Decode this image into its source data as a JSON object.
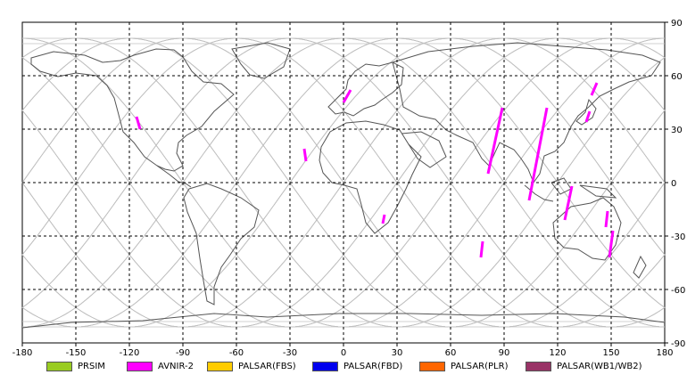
{
  "map": {
    "lon_range": [
      -180,
      180
    ],
    "lat_range": [
      -90,
      90
    ],
    "x_ticks": [
      "-180",
      "-150",
      "-120",
      "-90",
      "-60",
      "-30",
      "0",
      "30",
      "60",
      "90",
      "120",
      "150",
      "180"
    ],
    "y_ticks": [
      "90",
      "60",
      "30",
      "0",
      "-30",
      "-60",
      "-90"
    ],
    "grid": "dashed",
    "colors": {
      "background": "#ffffff",
      "coast": "#555555",
      "orbit": "#c0c0c0",
      "grid": "#000000"
    }
  },
  "legend": [
    {
      "label": "PRSIM",
      "color": "#99cc22"
    },
    {
      "label": "AVNIR-2",
      "color": "#ff00ff"
    },
    {
      "label": "PALSAR(FBS)",
      "color": "#ffcc00"
    },
    {
      "label": "PALSAR(FBD)",
      "color": "#0000ee"
    },
    {
      "label": "PALSAR(PLR)",
      "color": "#ff6600"
    },
    {
      "label": "PALSAR(WB1/WB2)",
      "color": "#993366"
    }
  ],
  "chart_data": {
    "type": "scatter",
    "xlim": [
      -180,
      180
    ],
    "ylim": [
      -90,
      90
    ],
    "series": [
      {
        "name": "AVNIR-2",
        "color": "#ff00ff",
        "segments": [
          [
            [
              -116,
              37
            ],
            [
              -114,
              30
            ]
          ],
          [
            [
              -22,
              19
            ],
            [
              -21,
              12
            ]
          ],
          [
            [
              0,
              45
            ],
            [
              4,
              52
            ]
          ],
          [
            [
              23,
              -18
            ],
            [
              22,
              -23
            ]
          ],
          [
            [
              78,
              -33
            ],
            [
              77,
              -42
            ]
          ],
          [
            [
              89,
              42
            ],
            [
              81,
              5
            ]
          ],
          [
            [
              114,
              42
            ],
            [
              104,
              -10
            ]
          ],
          [
            [
              128,
              -2
            ],
            [
              124,
              -21
            ]
          ],
          [
            [
              142,
              56
            ],
            [
              139,
              49
            ]
          ],
          [
            [
              138,
              40
            ],
            [
              136,
              34
            ]
          ],
          [
            [
              151,
              -27
            ],
            [
              149,
              -42
            ]
          ],
          [
            [
              148,
              -16
            ],
            [
              147,
              -25
            ]
          ]
        ]
      }
    ]
  }
}
